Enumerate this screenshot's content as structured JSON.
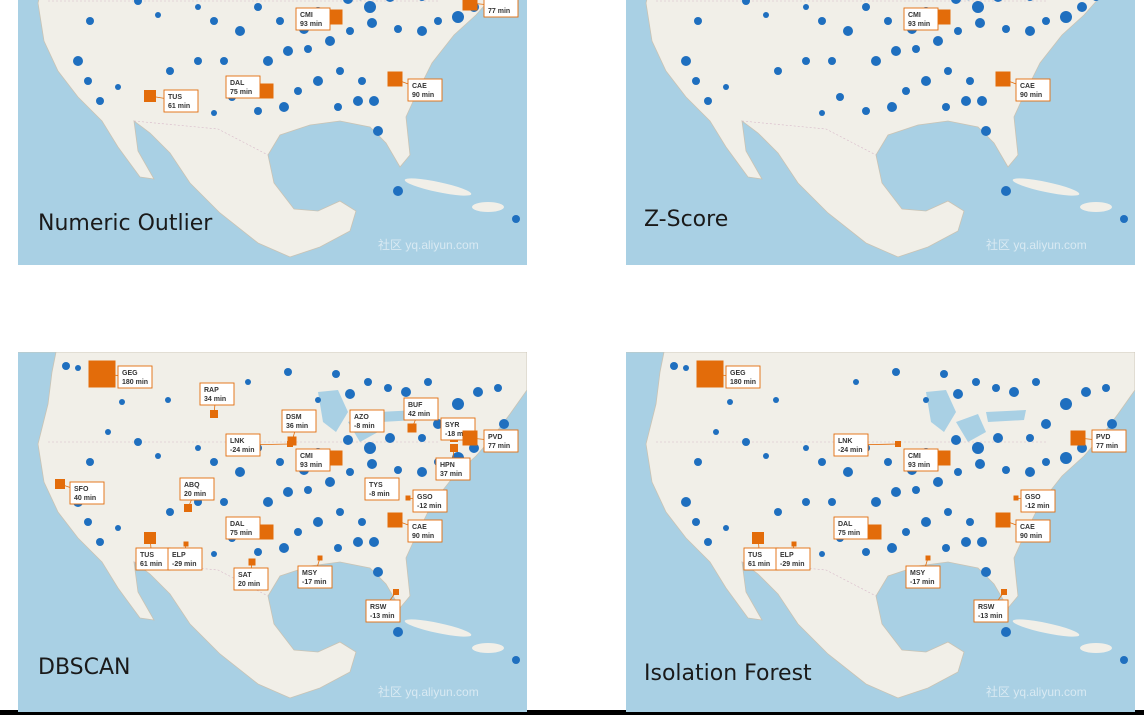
{
  "panels": [
    {
      "title": "Numeric Outlier",
      "watermark": "社区 yq.aliyun.com",
      "markers": [
        {
          "code": "CMI",
          "delay": "93 min"
        },
        {
          "delay": "77 min"
        },
        {
          "code": "TUS",
          "delay": "61 min"
        },
        {
          "code": "DAL",
          "delay": "75 min"
        },
        {
          "code": "CAE",
          "delay": "90 min"
        }
      ]
    },
    {
      "title": "Z-Score",
      "watermark": "社区 yq.aliyun.com",
      "markers": [
        {
          "code": "CMI",
          "delay": "93 min"
        },
        {
          "code": "CAE",
          "delay": "90 min"
        }
      ]
    },
    {
      "title": "DBSCAN",
      "watermark": "社区 yq.aliyun.com",
      "markers": [
        {
          "code": "GEG",
          "delay": "180 min"
        },
        {
          "code": "RAP",
          "delay": "34 min"
        },
        {
          "code": "DSM",
          "delay": "36 min"
        },
        {
          "code": "LNK",
          "delay": "-24 min"
        },
        {
          "code": "CMI",
          "delay": "93 min"
        },
        {
          "code": "AZO",
          "delay": "-8 min"
        },
        {
          "code": "BUF",
          "delay": "42 min"
        },
        {
          "code": "SYR",
          "delay": "-18 min"
        },
        {
          "code": "PVD",
          "delay": "77 min"
        },
        {
          "code": "HPN",
          "delay": "37 min"
        },
        {
          "code": "TYS",
          "delay": "-8 min"
        },
        {
          "code": "GSO",
          "delay": "-12 min"
        },
        {
          "code": "CAE",
          "delay": "90 min"
        },
        {
          "code": "SFO",
          "delay": "40 min"
        },
        {
          "code": "ABQ",
          "delay": "20 min"
        },
        {
          "code": "DAL",
          "delay": "75 min"
        },
        {
          "code": "TUS",
          "delay": "61 min"
        },
        {
          "code": "ELP",
          "delay": "-29 min"
        },
        {
          "code": "SAT",
          "delay": "20 min"
        },
        {
          "code": "MSY",
          "delay": "-17 min"
        },
        {
          "code": "RSW",
          "delay": "-13 min"
        }
      ]
    },
    {
      "title": "Isolation Forest",
      "watermark": "社区 yq.aliyun.com",
      "markers": [
        {
          "code": "GEG",
          "delay": "180 min"
        },
        {
          "code": "LNK",
          "delay": "-24 min"
        },
        {
          "code": "CMI",
          "delay": "93 min"
        },
        {
          "code": "PVD",
          "delay": "77 min"
        },
        {
          "code": "GSO",
          "delay": "-12 min"
        },
        {
          "code": "CAE",
          "delay": "90 min"
        },
        {
          "code": "DAL",
          "delay": "75 min"
        },
        {
          "code": "TUS",
          "delay": "61 min"
        },
        {
          "code": "ELP",
          "delay": "-29 min"
        },
        {
          "code": "MSY",
          "delay": "-17 min"
        },
        {
          "code": "RSW",
          "delay": "-13 min"
        }
      ]
    }
  ]
}
